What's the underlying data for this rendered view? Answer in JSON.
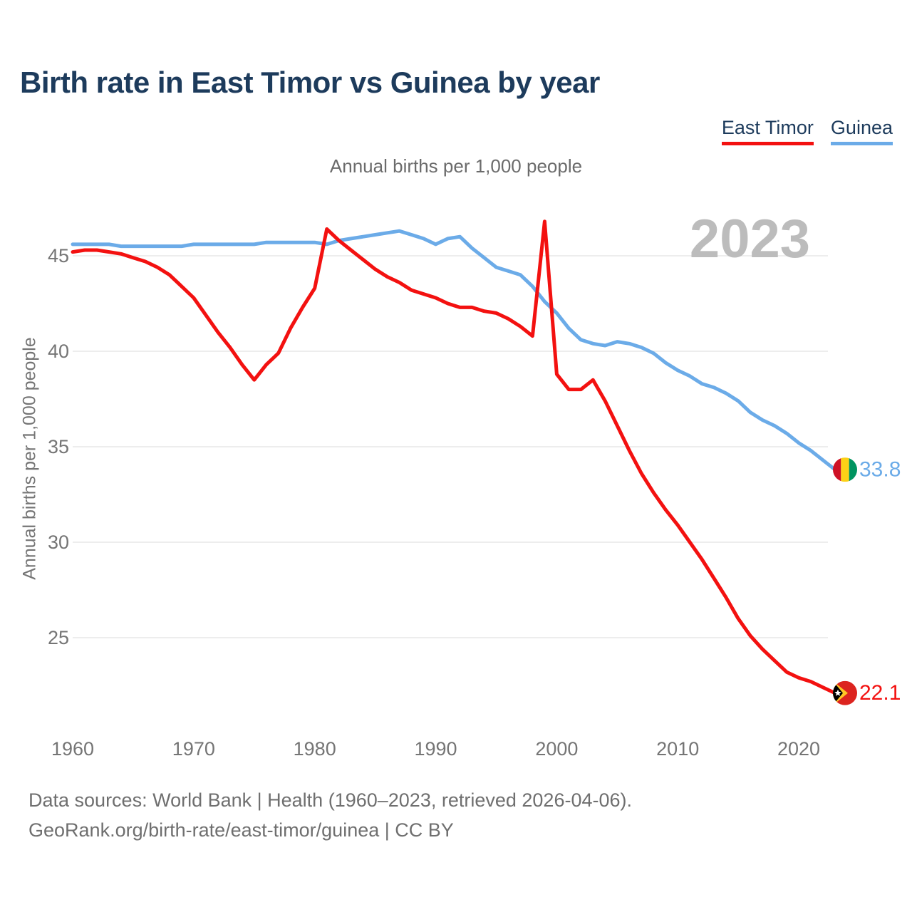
{
  "header": {
    "title": "Birth rate in East Timor vs Guinea by year"
  },
  "subtitle": "Annual births per 1,000 people",
  "y_axis_title": "Annual births per 1,000 people",
  "watermark": "2023",
  "legend": {
    "items": [
      {
        "label": "East Timor",
        "color": "#f31110"
      },
      {
        "label": "Guinea",
        "color": "#6babe8"
      }
    ]
  },
  "footer": {
    "line1": "Data sources: World Bank | Health (1960–2023, retrieved 2026-04-06).",
    "line2": "GeoRank.org/birth-rate/east-timor/guinea | CC BY"
  },
  "colors": {
    "east_timor_line": "#f31110",
    "guinea_line": "#6babe8",
    "title_navy": "#1d3b5c",
    "tick_gray": "#757575",
    "gridline": "#e7e7e7",
    "watermark_gray": "#bcbcbc",
    "flag_guinea_red": "#CE1126",
    "flag_guinea_yellow": "#FCD116",
    "flag_guinea_green": "#009460",
    "flag_timor_red": "#DC241F",
    "flag_timor_yellow": "#FFC726",
    "flag_timor_black": "#000000",
    "flag_timor_star": "#ffffff"
  },
  "chart_data": {
    "type": "line",
    "title": "Birth rate in East Timor vs Guinea by year",
    "subtitle": "Annual births per 1,000 people",
    "xlabel": "",
    "ylabel": "Annual births per 1,000 people",
    "x": [
      1960,
      1961,
      1962,
      1963,
      1964,
      1965,
      1966,
      1967,
      1968,
      1969,
      1970,
      1971,
      1972,
      1973,
      1974,
      1975,
      1976,
      1977,
      1978,
      1979,
      1980,
      1981,
      1982,
      1983,
      1984,
      1985,
      1986,
      1987,
      1988,
      1989,
      1990,
      1991,
      1992,
      1993,
      1994,
      1995,
      1996,
      1997,
      1998,
      1999,
      2000,
      2001,
      2002,
      2003,
      2004,
      2005,
      2006,
      2007,
      2008,
      2009,
      2010,
      2011,
      2012,
      2013,
      2014,
      2015,
      2016,
      2017,
      2018,
      2019,
      2020,
      2021,
      2022,
      2023
    ],
    "series": [
      {
        "name": "Guinea",
        "color": "#6babe8",
        "end_label": "33.8",
        "end_flag": "guinea",
        "values": [
          45.6,
          45.6,
          45.6,
          45.6,
          45.5,
          45.5,
          45.5,
          45.5,
          45.5,
          45.5,
          45.6,
          45.6,
          45.6,
          45.6,
          45.6,
          45.6,
          45.7,
          45.7,
          45.7,
          45.7,
          45.7,
          45.6,
          45.8,
          45.9,
          46.0,
          46.1,
          46.2,
          46.3,
          46.1,
          45.9,
          45.6,
          45.9,
          46.0,
          45.4,
          44.9,
          44.4,
          44.2,
          44.0,
          43.4,
          42.6,
          42.0,
          41.2,
          40.6,
          40.4,
          40.3,
          40.5,
          40.4,
          40.2,
          39.9,
          39.4,
          39.0,
          38.7,
          38.3,
          38.1,
          37.8,
          37.4,
          36.8,
          36.4,
          36.1,
          35.7,
          35.2,
          34.8,
          34.3,
          33.8
        ]
      },
      {
        "name": "East Timor",
        "color": "#f31110",
        "end_label": "22.1",
        "end_flag": "east-timor",
        "values": [
          45.2,
          45.3,
          45.3,
          45.2,
          45.1,
          44.9,
          44.7,
          44.4,
          44.0,
          43.4,
          42.8,
          41.9,
          41.0,
          40.2,
          39.3,
          38.5,
          39.3,
          39.9,
          41.2,
          42.3,
          43.3,
          46.4,
          45.8,
          45.3,
          44.8,
          44.3,
          43.9,
          43.6,
          43.2,
          43.0,
          42.8,
          42.5,
          42.3,
          42.3,
          42.1,
          42.0,
          41.7,
          41.3,
          40.8,
          46.8,
          38.8,
          38.0,
          38.0,
          38.5,
          37.4,
          36.1,
          34.8,
          33.6,
          32.6,
          31.7,
          30.9,
          30.0,
          29.1,
          28.1,
          27.1,
          26.0,
          25.1,
          24.4,
          23.8,
          23.2,
          22.9,
          22.7,
          22.4,
          22.1
        ]
      }
    ],
    "x_ticks": [
      1960,
      1970,
      1980,
      1990,
      2000,
      2010,
      2020
    ],
    "y_ticks": [
      25,
      30,
      35,
      40,
      45
    ],
    "xlim": [
      1960,
      2023
    ],
    "ylim": [
      21.5,
      47.3
    ],
    "grid": "horizontal-only",
    "legend_position": "top-right",
    "watermark": "2023"
  }
}
